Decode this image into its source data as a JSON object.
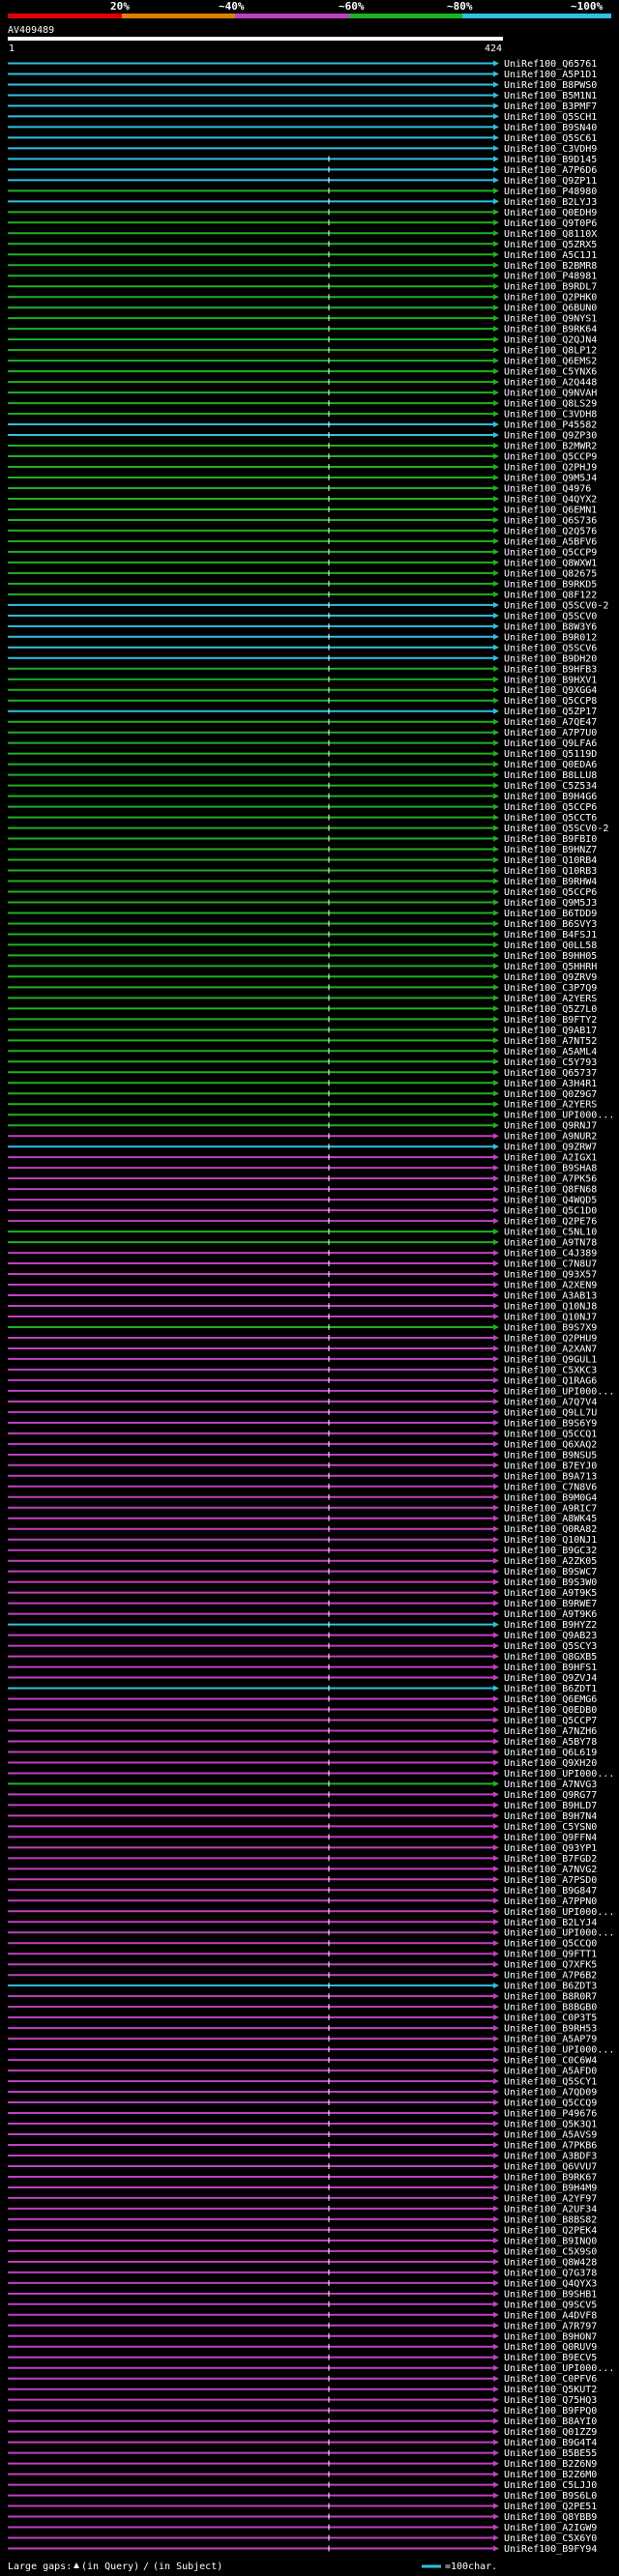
{
  "chart_data": {
    "type": "alignment-map",
    "query_name": "AV409489",
    "query_start": "1",
    "query_end": "424",
    "identity_scale": [
      {
        "label": "20%",
        "color": "#e00000"
      },
      {
        "label": "~40%",
        "color": "#e08000"
      },
      {
        "label": "~60%",
        "color": "#c040c0"
      },
      {
        "label": "~80%",
        "color": "#20b020"
      },
      {
        "label": "~100%",
        "color": "#30c0e0"
      }
    ],
    "footer": {
      "large_gaps": "Large gaps:",
      "in_query": "(in Query)",
      "in_subject": "(in Subject)",
      "scale_label": "=100char."
    },
    "hits": [
      {
        "label": "UniRef100_Q65761",
        "color": "cyan"
      },
      {
        "label": "UniRef100_A5P1D1",
        "color": "cyan"
      },
      {
        "label": "UniRef100_B8PWS0",
        "color": "cyan"
      },
      {
        "label": "UniRef100_B5M1N1",
        "color": "cyan"
      },
      {
        "label": "UniRef100_B3PMF7",
        "color": "cyan"
      },
      {
        "label": "UniRef100_Q5SCH1",
        "color": "cyan"
      },
      {
        "label": "UniRef100_B9SN40",
        "color": "cyan"
      },
      {
        "label": "UniRef100_Q5SC61",
        "color": "cyan"
      },
      {
        "label": "UniRef100_C3VDH9",
        "color": "cyan"
      },
      {
        "label": "UniRef100_B9D145",
        "color": "cyan"
      },
      {
        "label": "UniRef100_A7P6D6",
        "color": "cyan"
      },
      {
        "label": "UniRef100_Q9ZP11",
        "color": "cyan"
      },
      {
        "label": "UniRef100_P48980",
        "color": "green"
      },
      {
        "label": "UniRef100_B2LYJ3",
        "color": "cyan"
      },
      {
        "label": "UniRef100_Q0EDH9",
        "color": "green"
      },
      {
        "label": "UniRef100_Q9T0P6",
        "color": "green"
      },
      {
        "label": "UniRef100_Q8110X",
        "color": "green"
      },
      {
        "label": "UniRef100_Q5ZRX5",
        "color": "green"
      },
      {
        "label": "UniRef100_A5C1J1",
        "color": "green"
      },
      {
        "label": "UniRef100_B2BMR8",
        "color": "green"
      },
      {
        "label": "UniRef100_P48981",
        "color": "green"
      },
      {
        "label": "UniRef100_B9RDL7",
        "color": "green"
      },
      {
        "label": "UniRef100_Q2PHK0",
        "color": "green"
      },
      {
        "label": "UniRef100_Q6BUN0",
        "color": "green"
      },
      {
        "label": "UniRef100_Q9NYS1",
        "color": "green"
      },
      {
        "label": "UniRef100_B9RK64",
        "color": "green"
      },
      {
        "label": "UniRef100_Q2QJN4",
        "color": "green"
      },
      {
        "label": "UniRef100_Q8LP12",
        "color": "green"
      },
      {
        "label": "UniRef100_Q6EMS2",
        "color": "green"
      },
      {
        "label": "UniRef100_C5YNX6",
        "color": "green"
      },
      {
        "label": "UniRef100_A2Q448",
        "color": "green"
      },
      {
        "label": "UniRef100_Q9NVAH",
        "color": "green"
      },
      {
        "label": "UniRef100_Q8LS29",
        "color": "green"
      },
      {
        "label": "UniRef100_C3VDH8",
        "color": "green"
      },
      {
        "label": "UniRef100_P45582",
        "color": "cyan"
      },
      {
        "label": "UniRef100_Q9ZP30",
        "color": "cyan"
      },
      {
        "label": "UniRef100_B2MWR2",
        "color": "green"
      },
      {
        "label": "UniRef100_Q5CCP9",
        "color": "green"
      },
      {
        "label": "UniRef100_Q2PHJ9",
        "color": "green"
      },
      {
        "label": "UniRef100_Q9M5J4",
        "color": "green"
      },
      {
        "label": "UniRef100_Q4976",
        "color": "green"
      },
      {
        "label": "UniRef100_Q4QYX2",
        "color": "green"
      },
      {
        "label": "UniRef100_Q6EMN1",
        "color": "green"
      },
      {
        "label": "UniRef100_Q6S736",
        "color": "green"
      },
      {
        "label": "UniRef100_Q2Q576",
        "color": "green"
      },
      {
        "label": "UniRef100_A5BFV6",
        "color": "green"
      },
      {
        "label": "UniRef100_Q5CCP9",
        "color": "green"
      },
      {
        "label": "UniRef100_Q8WXW1",
        "color": "green"
      },
      {
        "label": "UniRef100_Q82675",
        "color": "green"
      },
      {
        "label": "UniRef100_B9RKD5",
        "color": "green"
      },
      {
        "label": "UniRef100_Q8F122",
        "color": "green"
      },
      {
        "label": "UniRef100_Q5SCV0-2",
        "color": "cyan"
      },
      {
        "label": "UniRef100_Q5SCV0",
        "color": "cyan"
      },
      {
        "label": "UniRef100_B8W3Y6",
        "color": "cyan"
      },
      {
        "label": "UniRef100_B9R012",
        "color": "cyan"
      },
      {
        "label": "UniRef100_Q5SCV6",
        "color": "cyan"
      },
      {
        "label": "UniRef100_B9DH20",
        "color": "cyan"
      },
      {
        "label": "UniRef100_B9HFB3",
        "color": "green"
      },
      {
        "label": "UniRef100_B9HXV1",
        "color": "green"
      },
      {
        "label": "UniRef100_Q9XGG4",
        "color": "green"
      },
      {
        "label": "UniRef100_Q5CCP8",
        "color": "green"
      },
      {
        "label": "UniRef100_Q5ZP17",
        "color": "cyan"
      },
      {
        "label": "UniRef100_A7QE47",
        "color": "green"
      },
      {
        "label": "UniRef100_A7P7U0",
        "color": "green"
      },
      {
        "label": "UniRef100_Q9LFA6",
        "color": "green"
      },
      {
        "label": "UniRef100_Q5119D",
        "color": "green"
      },
      {
        "label": "UniRef100_Q0EDA6",
        "color": "green"
      },
      {
        "label": "UniRef100_B8LLU8",
        "color": "green"
      },
      {
        "label": "UniRef100_C5Z534",
        "color": "green"
      },
      {
        "label": "UniRef100_B9H4G6",
        "color": "green"
      },
      {
        "label": "UniRef100_Q5CCP6",
        "color": "green"
      },
      {
        "label": "UniRef100_Q5CCT6",
        "color": "green"
      },
      {
        "label": "UniRef100_Q5SCV0-2",
        "color": "green"
      },
      {
        "label": "UniRef100_B9FBI0",
        "color": "green"
      },
      {
        "label": "UniRef100_B9HNZ7",
        "color": "green"
      },
      {
        "label": "UniRef100_Q10RB4",
        "color": "green"
      },
      {
        "label": "UniRef100_Q10RB3",
        "color": "green"
      },
      {
        "label": "UniRef100_B9RHW4",
        "color": "green"
      },
      {
        "label": "UniRef100_Q5CCP6",
        "color": "green"
      },
      {
        "label": "UniRef100_Q9M5J3",
        "color": "green"
      },
      {
        "label": "UniRef100_B6TDD9",
        "color": "green"
      },
      {
        "label": "UniRef100_B6SVY3",
        "color": "green"
      },
      {
        "label": "UniRef100_B4FSJ1",
        "color": "green"
      },
      {
        "label": "UniRef100_Q0LL58",
        "color": "green"
      },
      {
        "label": "UniRef100_B9HH05",
        "color": "green"
      },
      {
        "label": "UniRef100_Q5HHRH",
        "color": "green"
      },
      {
        "label": "UniRef100_Q9ZRV9",
        "color": "green"
      },
      {
        "label": "UniRef100_C3P7Q9",
        "color": "green"
      },
      {
        "label": "UniRef100_A2YERS",
        "color": "green"
      },
      {
        "label": "UniRef100_Q5Z7L0",
        "color": "green"
      },
      {
        "label": "UniRef100_B9FTY2",
        "color": "green"
      },
      {
        "label": "UniRef100_Q9AB17",
        "color": "green"
      },
      {
        "label": "UniRef100_A7NT52",
        "color": "green"
      },
      {
        "label": "UniRef100_A5AML4",
        "color": "green"
      },
      {
        "label": "UniRef100_C5Y793",
        "color": "green"
      },
      {
        "label": "UniRef100_Q65737",
        "color": "green"
      },
      {
        "label": "UniRef100_A3H4R1",
        "color": "green"
      },
      {
        "label": "UniRef100_Q0Z9G7",
        "color": "green"
      },
      {
        "label": "UniRef100_A2YERS",
        "color": "green"
      },
      {
        "label": "UniRef100_UPI000...",
        "color": "green"
      },
      {
        "label": "UniRef100_Q9RNJ7",
        "color": "green"
      },
      {
        "label": "UniRef100_A9NUR2",
        "color": "magenta"
      },
      {
        "label": "UniRef100_Q9ZRW7",
        "color": "cyan"
      },
      {
        "label": "UniRef100_A2IGX1",
        "color": "magenta"
      },
      {
        "label": "UniRef100_B9SHA8",
        "color": "magenta"
      },
      {
        "label": "UniRef100_A7PK56",
        "color": "magenta"
      },
      {
        "label": "UniRef100_Q8FN68",
        "color": "magenta"
      },
      {
        "label": "UniRef100_Q4WQD5",
        "color": "magenta"
      },
      {
        "label": "UniRef100_Q5C1D0",
        "color": "magenta"
      },
      {
        "label": "UniRef100_Q2PE76",
        "color": "magenta"
      },
      {
        "label": "UniRef100_C5NL10",
        "color": "green"
      },
      {
        "label": "UniRef100_A9TN78",
        "color": "green"
      },
      {
        "label": "UniRef100_C4J389",
        "color": "magenta"
      },
      {
        "label": "UniRef100_C7N8U7",
        "color": "magenta"
      },
      {
        "label": "UniRef100_Q93X57",
        "color": "magenta"
      },
      {
        "label": "UniRef100_A2XEN9",
        "color": "magenta"
      },
      {
        "label": "UniRef100_A3AB13",
        "color": "magenta"
      },
      {
        "label": "UniRef100_Q10NJ8",
        "color": "magenta"
      },
      {
        "label": "UniRef100_Q10NJ7",
        "color": "magenta"
      },
      {
        "label": "UniRef100_B9S7X9",
        "color": "green"
      },
      {
        "label": "UniRef100_Q2PHU9",
        "color": "magenta"
      },
      {
        "label": "UniRef100_A2XAN7",
        "color": "magenta"
      },
      {
        "label": "UniRef100_Q9GUL1",
        "color": "magenta"
      },
      {
        "label": "UniRef100_C5XKC3",
        "color": "magenta"
      },
      {
        "label": "UniRef100_Q1RAG6",
        "color": "magenta"
      },
      {
        "label": "UniRef100_UPI000...",
        "color": "magenta"
      },
      {
        "label": "UniRef100_A7Q7V4",
        "color": "magenta"
      },
      {
        "label": "UniRef100_Q9LL7U",
        "color": "magenta"
      },
      {
        "label": "UniRef100_B9S6Y9",
        "color": "magenta"
      },
      {
        "label": "UniRef100_Q5CCQ1",
        "color": "magenta"
      },
      {
        "label": "UniRef100_Q6XAQ2",
        "color": "magenta"
      },
      {
        "label": "UniRef100_B9NSU5",
        "color": "magenta"
      },
      {
        "label": "UniRef100_B7EYJ0",
        "color": "magenta"
      },
      {
        "label": "UniRef100_B9A713",
        "color": "magenta"
      },
      {
        "label": "UniRef100_C7N8V6",
        "color": "magenta"
      },
      {
        "label": "UniRef100_B9M0G4",
        "color": "magenta"
      },
      {
        "label": "UniRef100_A9RIC7",
        "color": "magenta"
      },
      {
        "label": "UniRef100_A8WK45",
        "color": "magenta"
      },
      {
        "label": "UniRef100_Q0RA82",
        "color": "magenta"
      },
      {
        "label": "UniRef100_Q10NJ1",
        "color": "magenta"
      },
      {
        "label": "UniRef100_B9GC32",
        "color": "magenta"
      },
      {
        "label": "UniRef100_A2ZK05",
        "color": "magenta"
      },
      {
        "label": "UniRef100_B9SWC7",
        "color": "magenta"
      },
      {
        "label": "UniRef100_B9S3W0",
        "color": "magenta"
      },
      {
        "label": "UniRef100_A9T9K5",
        "color": "magenta"
      },
      {
        "label": "UniRef100_B9RWE7",
        "color": "magenta"
      },
      {
        "label": "UniRef100_A9T9K6",
        "color": "magenta"
      },
      {
        "label": "UniRef100_B9HYZ2",
        "color": "cyan"
      },
      {
        "label": "UniRef100_Q9AB23",
        "color": "magenta"
      },
      {
        "label": "UniRef100_Q5SCY3",
        "color": "magenta"
      },
      {
        "label": "UniRef100_Q8GXB5",
        "color": "magenta"
      },
      {
        "label": "UniRef100_B9HFS1",
        "color": "magenta"
      },
      {
        "label": "UniRef100_Q9ZVJ4",
        "color": "magenta"
      },
      {
        "label": "UniRef100_B6ZDT1",
        "color": "cyan"
      },
      {
        "label": "UniRef100_Q6EMG6",
        "color": "magenta"
      },
      {
        "label": "UniRef100_Q0EDB0",
        "color": "magenta"
      },
      {
        "label": "UniRef100_Q5CCP7",
        "color": "magenta"
      },
      {
        "label": "UniRef100_A7NZH6",
        "color": "magenta"
      },
      {
        "label": "UniRef100_A5BY78",
        "color": "magenta"
      },
      {
        "label": "UniRef100_Q6L619",
        "color": "magenta"
      },
      {
        "label": "UniRef100_Q9XH20",
        "color": "magenta"
      },
      {
        "label": "UniRef100_UPI000...",
        "color": "magenta"
      },
      {
        "label": "UniRef100_A7NVG3",
        "color": "green"
      },
      {
        "label": "UniRef100_Q9RG77",
        "color": "magenta"
      },
      {
        "label": "UniRef100_B9HLD7",
        "color": "magenta"
      },
      {
        "label": "UniRef100_B9H7N4",
        "color": "magenta"
      },
      {
        "label": "UniRef100_C5YSN0",
        "color": "magenta"
      },
      {
        "label": "UniRef100_Q9FFN4",
        "color": "magenta"
      },
      {
        "label": "UniRef100_Q93YP1",
        "color": "magenta"
      },
      {
        "label": "UniRef100_B7FGD2",
        "color": "magenta"
      },
      {
        "label": "UniRef100_A7NVG2",
        "color": "magenta"
      },
      {
        "label": "UniRef100_A7PSD0",
        "color": "magenta"
      },
      {
        "label": "UniRef100_B9G847",
        "color": "magenta"
      },
      {
        "label": "UniRef100_A7PPN0",
        "color": "magenta"
      },
      {
        "label": "UniRef100_UPI000...",
        "color": "magenta"
      },
      {
        "label": "UniRef100_B2LYJ4",
        "color": "magenta"
      },
      {
        "label": "UniRef100_UPI000...",
        "color": "magenta"
      },
      {
        "label": "UniRef100_Q5CCQ0",
        "color": "magenta"
      },
      {
        "label": "UniRef100_Q9FTT1",
        "color": "magenta"
      },
      {
        "label": "UniRef100_Q7XFK5",
        "color": "magenta"
      },
      {
        "label": "UniRef100_A7P6B2",
        "color": "magenta"
      },
      {
        "label": "UniRef100_B6ZDT3",
        "color": "cyan"
      },
      {
        "label": "UniRef100_B8R0R7",
        "color": "magenta"
      },
      {
        "label": "UniRef100_B8BGB0",
        "color": "magenta"
      },
      {
        "label": "UniRef100_C0P3T5",
        "color": "magenta"
      },
      {
        "label": "UniRef100_B9RH53",
        "color": "magenta"
      },
      {
        "label": "UniRef100_A5AP79",
        "color": "magenta"
      },
      {
        "label": "UniRef100_UPI000...",
        "color": "magenta"
      },
      {
        "label": "UniRef100_C0C6W4",
        "color": "magenta"
      },
      {
        "label": "UniRef100_A5AFD0",
        "color": "magenta"
      },
      {
        "label": "UniRef100_Q5SCY1",
        "color": "magenta"
      },
      {
        "label": "UniRef100_A7QD09",
        "color": "magenta"
      },
      {
        "label": "UniRef100_Q5CCQ9",
        "color": "magenta"
      },
      {
        "label": "UniRef100_P49676",
        "color": "magenta"
      },
      {
        "label": "UniRef100_Q5K3Q1",
        "color": "magenta"
      },
      {
        "label": "UniRef100_A5AVS9",
        "color": "magenta"
      },
      {
        "label": "UniRef100_A7PKB6",
        "color": "magenta"
      },
      {
        "label": "UniRef100_A3BDF3",
        "color": "magenta"
      },
      {
        "label": "UniRef100_Q6VVU7",
        "color": "magenta"
      },
      {
        "label": "UniRef100_B9RK67",
        "color": "magenta"
      },
      {
        "label": "UniRef100_B9H4M9",
        "color": "magenta"
      },
      {
        "label": "UniRef100_A2YF97",
        "color": "magenta"
      },
      {
        "label": "UniRef100_A2UF34",
        "color": "magenta"
      },
      {
        "label": "UniRef100_B8BS82",
        "color": "magenta"
      },
      {
        "label": "UniRef100_Q2PEK4",
        "color": "magenta"
      },
      {
        "label": "UniRef100_B9INQ0",
        "color": "magenta"
      },
      {
        "label": "UniRef100_C5X9S0",
        "color": "magenta"
      },
      {
        "label": "UniRef100_Q8W428",
        "color": "magenta"
      },
      {
        "label": "UniRef100_Q7G378",
        "color": "magenta"
      },
      {
        "label": "UniRef100_Q4QYX3",
        "color": "magenta"
      },
      {
        "label": "UniRef100_B9SHB1",
        "color": "magenta"
      },
      {
        "label": "UniRef100_Q9SCV5",
        "color": "magenta"
      },
      {
        "label": "UniRef100_A4DVF8",
        "color": "magenta"
      },
      {
        "label": "UniRef100_A7R797",
        "color": "magenta"
      },
      {
        "label": "UniRef100_B9HON7",
        "color": "magenta"
      },
      {
        "label": "UniRef100_Q0RUV9",
        "color": "magenta"
      },
      {
        "label": "UniRef100_B9ECV5",
        "color": "magenta"
      },
      {
        "label": "UniRef100_UPI000...",
        "color": "magenta"
      },
      {
        "label": "UniRef100_C0PFV6",
        "color": "magenta"
      },
      {
        "label": "UniRef100_Q5KUT2",
        "color": "magenta"
      },
      {
        "label": "UniRef100_Q75HQ3",
        "color": "magenta"
      },
      {
        "label": "UniRef100_B9FPQ0",
        "color": "magenta"
      },
      {
        "label": "UniRef100_B8AYI0",
        "color": "magenta"
      },
      {
        "label": "UniRef100_Q01ZZ9",
        "color": "magenta"
      },
      {
        "label": "UniRef100_B9G4T4",
        "color": "magenta"
      },
      {
        "label": "UniRef100_B5BE55",
        "color": "magenta"
      },
      {
        "label": "UniRef100_B2Z6N9",
        "color": "magenta"
      },
      {
        "label": "UniRef100_B2Z6M0",
        "color": "magenta"
      },
      {
        "label": "UniRef100_C5LJJ0",
        "color": "magenta"
      },
      {
        "label": "UniRef100_B9S6L0",
        "color": "magenta"
      },
      {
        "label": "UniRef100_Q2PE51",
        "color": "magenta"
      },
      {
        "label": "UniRef100_Q8YBB9",
        "color": "magenta"
      },
      {
        "label": "UniRef100_A2IGW9",
        "color": "magenta"
      },
      {
        "label": "UniRef100_C5X6Y0",
        "color": "magenta"
      },
      {
        "label": "UniRef100_B9FY94",
        "color": "magenta"
      }
    ]
  }
}
